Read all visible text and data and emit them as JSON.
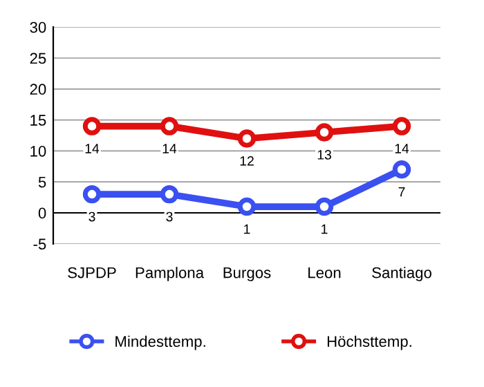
{
  "chart_data": {
    "type": "line",
    "categories": [
      "SJPDP",
      "Pamplona",
      "Burgos",
      "Leon",
      "Santiago"
    ],
    "series": [
      {
        "name": "Mindesttemp.",
        "color": "#3a50f0",
        "values": [
          3,
          3,
          1,
          1,
          7
        ]
      },
      {
        "name": "Höchsttemp.",
        "color": "#e01010",
        "values": [
          14,
          14,
          12,
          13,
          14
        ]
      }
    ],
    "ylim": [
      -5,
      30
    ],
    "yticks": [
      -5,
      0,
      5,
      10,
      15,
      20,
      25,
      30
    ],
    "grid": "y",
    "legend": "bottom",
    "marker": "circle",
    "line_style": "solid",
    "data_labels": true
  }
}
